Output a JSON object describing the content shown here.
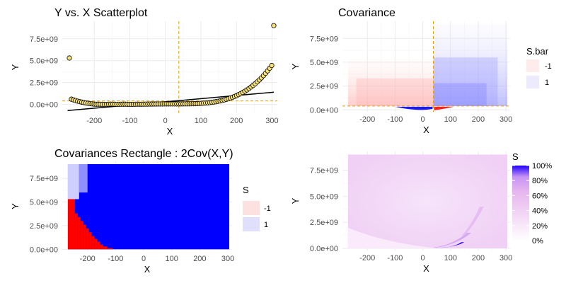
{
  "chart_data": [
    {
      "type": "scatter",
      "title": "Y vs. X Scatterplot",
      "xlabel": "X",
      "ylabel": "Y",
      "xlim": [
        -290,
        315
      ],
      "ylim": [
        -1000000000,
        9500000000
      ],
      "x_ticks": [
        -200,
        -100,
        0,
        100,
        200,
        300
      ],
      "y_ticks": [
        0,
        2500000000,
        5000000000,
        7500000000
      ],
      "y_tick_labels": [
        "0.0e+00",
        "2.5e+09",
        "5.0e+09",
        "7.5e+09"
      ],
      "mean_x": 38,
      "mean_y": 400000000,
      "fit_line": {
        "x": [
          -275,
          305
        ],
        "y": [
          -700000000,
          1400000000
        ]
      },
      "colors": {
        "point_fill": "#f7e27a",
        "point_stroke": "#000000",
        "ref_line": "#e69f00",
        "fit": "#000000"
      },
      "points_generator": {
        "x_min": -270,
        "x_max": 305,
        "n": 100,
        "y_form": "x^4-ish"
      },
      "grid": true
    },
    {
      "type": "heatmap",
      "title": "Covariance",
      "xlabel": "X",
      "ylabel": "Y",
      "xlim": [
        -290,
        315
      ],
      "ylim": [
        -200000000,
        9300000000
      ],
      "x_ticks": [
        -200,
        -100,
        0,
        100,
        200,
        300
      ],
      "y_ticks": [
        0,
        2500000000,
        5000000000,
        7500000000
      ],
      "y_tick_labels": [
        "0.0e+00",
        "2.5e+09",
        "5.0e+09",
        "7.5e+09"
      ],
      "mean_x": 38,
      "mean_y": 400000000,
      "legend": {
        "title": "S.bar",
        "entries": [
          "-1",
          "1"
        ],
        "colors": [
          "#fdeceb",
          "#ecebfd"
        ]
      },
      "grid": true
    },
    {
      "type": "heatmap",
      "title": "Covariances Rectangle : 2Cov(X,Y)",
      "xlabel": "X",
      "ylabel": "Y",
      "xlim": [
        -290,
        315
      ],
      "ylim": [
        -200000000,
        9300000000
      ],
      "x_ticks": [
        -200,
        -100,
        0,
        100,
        200,
        300
      ],
      "y_ticks": [
        0,
        2500000000,
        5000000000,
        7500000000
      ],
      "y_tick_labels": [
        "0.0e+00",
        "2.5e+09",
        "5.0e+09",
        "7.5e+09"
      ],
      "legend": {
        "title": "S",
        "entries": [
          "-1",
          "1"
        ],
        "colors": [
          "#fde0e0",
          "#e0e0fd"
        ]
      },
      "colors": {
        "positive": "#0000ff",
        "negative": "#ff0000"
      },
      "grid": true
    },
    {
      "type": "heatmap",
      "title": "",
      "xlabel": "X",
      "ylabel": "Y",
      "xlim": [
        -290,
        315
      ],
      "ylim": [
        -200000000,
        9300000000
      ],
      "x_ticks": [
        -200,
        -100,
        0,
        100,
        200,
        300
      ],
      "y_ticks": [
        0,
        2500000000,
        5000000000,
        7500000000
      ],
      "y_tick_labels": [
        "0.0e+00",
        "2.5e+09",
        "5.0e+09",
        "7.5e+09"
      ],
      "legend": {
        "title": "S",
        "type": "gradient",
        "labels": [
          "100%",
          "80%",
          "60%",
          "40%",
          "20%",
          "0%"
        ],
        "values": [
          1.0,
          0.8,
          0.6,
          0.4,
          0.2,
          0.0
        ],
        "colors": {
          "low": "#ffffff",
          "mid": "#e7b6ef",
          "high": "#1f00ff"
        }
      },
      "grid": true
    }
  ]
}
